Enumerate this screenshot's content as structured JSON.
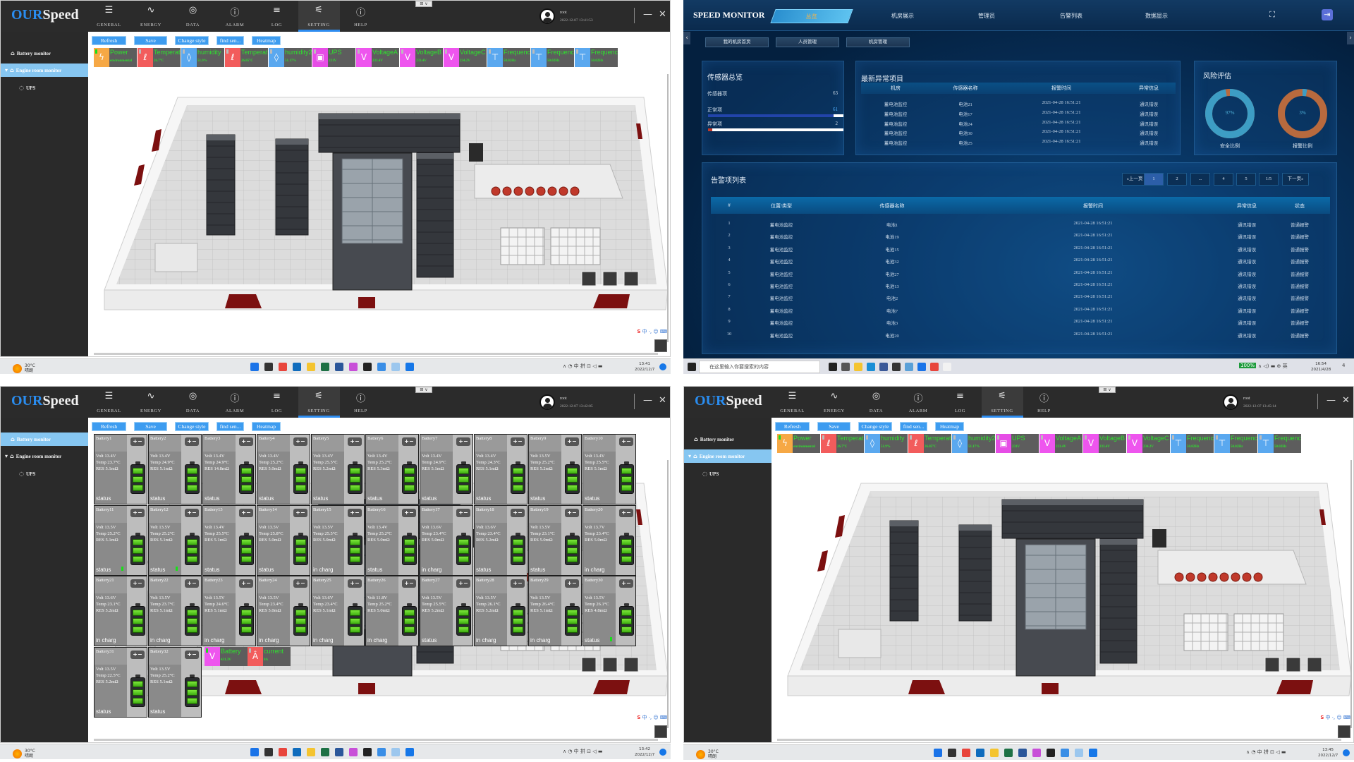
{
  "ourspeed": {
    "logo_our": "OUR",
    "logo_speed": "Speed",
    "nav": [
      {
        "label": "GENERAL",
        "icon": "list-icon"
      },
      {
        "label": "ENERGY",
        "icon": "pulse-icon"
      },
      {
        "label": "DATA",
        "icon": "gauge-icon"
      },
      {
        "label": "ALARM",
        "icon": "alarm-icon"
      },
      {
        "label": "LOG",
        "icon": "log-icon"
      },
      {
        "label": "SETTING",
        "icon": "sliders-icon",
        "active": true
      },
      {
        "label": "HELP",
        "icon": "info-icon"
      }
    ],
    "user_name": "root",
    "window_menu": "⊞ ∨",
    "sidebar": [
      {
        "label": "Battery monitor",
        "icon": "home-icon"
      },
      {
        "label": "Engine room monitor",
        "icon": "home-icon",
        "expanded": true
      },
      {
        "label": "UPS",
        "icon": "circle-icon"
      }
    ],
    "toolbar": [
      "Refresh",
      "Save",
      "Change style",
      "find sen...",
      "Heatmap"
    ],
    "sensor_colors": {
      "power": "#f6a845",
      "temperature": "#f25c5c",
      "humidity": "#5aa8ef",
      "ups": "#e64de6",
      "voltage": "#ee55ee",
      "frequency": "#5aa8ef",
      "current": "#f25c5c"
    },
    "sensors": [
      {
        "name": "Power",
        "value": "environmental",
        "type": "power",
        "online": true
      },
      {
        "name": "Temperature",
        "value": "26.7°C",
        "type": "temperature"
      },
      {
        "name": "humidity",
        "value": "51.9%",
        "type": "humidity"
      },
      {
        "name": "Temperature",
        "value": "26.85°C",
        "type": "temperature"
      },
      {
        "name": "humidity2",
        "value": "51.17%",
        "type": "humidity"
      },
      {
        "name": "UPS",
        "value": "231V",
        "type": "ups"
      },
      {
        "name": "VoltageA",
        "value": "233.4V",
        "type": "voltage"
      },
      {
        "name": "VoltageB",
        "value": "233.4V",
        "type": "voltage"
      },
      {
        "name": "VoltageC",
        "value": "234.2V",
        "type": "voltage"
      },
      {
        "name": "Frequency",
        "value": "50.02Hz",
        "type": "frequency"
      },
      {
        "name": "Frequency",
        "value": "50.02Hz",
        "type": "frequency"
      },
      {
        "name": "Frequency",
        "value": "50.02Hz",
        "type": "frequency"
      }
    ],
    "ime_label": "中 ·, ☺ ⌨"
  },
  "windows": {
    "tl": {
      "header_datetime": "2022-12-07 13:41:53",
      "selected_sidebar": 1,
      "taskbar_time": "13:41",
      "taskbar_date": "2022/12/7"
    },
    "bl": {
      "header_datetime": "2022-12-07 13:42:05",
      "selected_sidebar": 0,
      "taskbar_time": "13:42",
      "taskbar_date": "2022/12/7"
    },
    "br": {
      "header_datetime": "2022-12-07 13:45:14",
      "selected_sidebar": 1,
      "taskbar_time": "13:45",
      "taskbar_date": "2022/12/7"
    }
  },
  "battery_monitor": {
    "terminal_label": "+−",
    "batteries": [
      {
        "name": "Battery1",
        "volt": "Volt 13.4V",
        "temp": "Temp 23.7°C",
        "res": "RES 5.1mΩ",
        "status": "status"
      },
      {
        "name": "Battery2",
        "volt": "Volt 13.4V",
        "temp": "Temp 24.9°C",
        "res": "RES 5.1mΩ",
        "status": "status"
      },
      {
        "name": "Battery3",
        "volt": "Volt 13.4V",
        "temp": "Temp 24.9°C",
        "res": "RES 14.8mΩ",
        "status": "status"
      },
      {
        "name": "Battery4",
        "volt": "Volt 13.4V",
        "temp": "Temp 25.2°C",
        "res": "RES 5.0mΩ",
        "status": "status"
      },
      {
        "name": "Battery5",
        "volt": "Volt 13.4V",
        "temp": "Temp 25.5°C",
        "res": "RES 5.2mΩ",
        "status": "status"
      },
      {
        "name": "Battery6",
        "volt": "Volt 13.4V",
        "temp": "Temp 25.2°C",
        "res": "RES 5.3mΩ",
        "status": "status"
      },
      {
        "name": "Battery7",
        "volt": "Volt 13.4V",
        "temp": "Temp 24.9°C",
        "res": "RES 5.1mΩ",
        "status": "status"
      },
      {
        "name": "Battery8",
        "volt": "Volt 13.4V",
        "temp": "Temp 24.3°C",
        "res": "RES 5.1mΩ",
        "status": "status"
      },
      {
        "name": "Battery9",
        "volt": "Volt 13.5V",
        "temp": "Temp 25.2°C",
        "res": "RES 5.2mΩ",
        "status": "status"
      },
      {
        "name": "Battery10",
        "volt": "Volt 13.4V",
        "temp": "Temp 25.5°C",
        "res": "RES 5.1mΩ",
        "status": "status"
      },
      {
        "name": "Battery11",
        "volt": "Volt 13.5V",
        "temp": "Temp 25.2°C",
        "res": "RES 5.1mΩ",
        "status": "status",
        "indicator": true
      },
      {
        "name": "Battery12",
        "volt": "Volt 13.5V",
        "temp": "Temp 25.2°C",
        "res": "RES 5.1mΩ",
        "status": "status",
        "indicator": true
      },
      {
        "name": "Battery13",
        "volt": "Volt 13.4V",
        "temp": "Temp 25.5°C",
        "res": "RES 5.1mΩ",
        "status": "status"
      },
      {
        "name": "Battery14",
        "volt": "Volt 13.5V",
        "temp": "Temp 25.8°C",
        "res": "RES 5.0mΩ",
        "status": "status"
      },
      {
        "name": "Battery15",
        "volt": "Volt 13.5V",
        "temp": "Temp 25.5°C",
        "res": "RES 5.0mΩ",
        "status": "in charg"
      },
      {
        "name": "Battery16",
        "volt": "Volt 13.4V",
        "temp": "Temp 25.2°C",
        "res": "RES 5.0mΩ",
        "status": "status"
      },
      {
        "name": "Battery17",
        "volt": "Volt 13.6V",
        "temp": "Temp 23.4°C",
        "res": "RES 5.0mΩ",
        "status": "in charg"
      },
      {
        "name": "Battery18",
        "volt": "Volt 13.6V",
        "temp": "Temp 23.4°C",
        "res": "RES 5.2mΩ",
        "status": "status"
      },
      {
        "name": "Battery19",
        "volt": "Volt 13.5V",
        "temp": "Temp 23.1°C",
        "res": "RES 5.0mΩ",
        "status": "status"
      },
      {
        "name": "Battery20",
        "volt": "Volt 13.7V",
        "temp": "Temp 23.4°C",
        "res": "RES 5.0mΩ",
        "status": "in charg"
      },
      {
        "name": "Battery21",
        "volt": "Volt 13.6V",
        "temp": "Temp 23.1°C",
        "res": "RES 5.2mΩ",
        "status": "in charg"
      },
      {
        "name": "Battery22",
        "volt": "Volt 13.5V",
        "temp": "Temp 23.7°C",
        "res": "RES 5.1mΩ",
        "status": "in charg"
      },
      {
        "name": "Battery23",
        "volt": "Volt 13.5V",
        "temp": "Temp 24.6°C",
        "res": "RES 5.1mΩ",
        "status": "in charg"
      },
      {
        "name": "Battery24",
        "volt": "Volt 13.5V",
        "temp": "Temp 23.4°C",
        "res": "RES 5.0mΩ",
        "status": "in charg"
      },
      {
        "name": "Battery25",
        "volt": "Volt 13.6V",
        "temp": "Temp 23.4°C",
        "res": "RES 5.1mΩ",
        "status": "in charg"
      },
      {
        "name": "Battery26",
        "volt": "Volt 11.8V",
        "temp": "Temp 25.2°C",
        "res": "RES 5.0mΩ",
        "status": "in charg"
      },
      {
        "name": "Battery27",
        "volt": "Volt 13.5V",
        "temp": "Temp 25.5°C",
        "res": "RES 5.2mΩ",
        "status": "status"
      },
      {
        "name": "Battery28",
        "volt": "Volt 13.5V",
        "temp": "Temp 26.1°C",
        "res": "RES 5.2mΩ",
        "status": "in charg"
      },
      {
        "name": "Battery29",
        "volt": "Volt 13.5V",
        "temp": "Temp 26.4°C",
        "res": "RES 5.1mΩ",
        "status": "in charg"
      },
      {
        "name": "Battery30",
        "volt": "Volt 13.5V",
        "temp": "Temp 26.1°C",
        "res": "RES 4.8mΩ",
        "status": "status",
        "indicator": true
      },
      {
        "name": "Battery31",
        "volt": "Volt 13.5V",
        "temp": "Temp 22.5°C",
        "res": "RES 5.2mΩ",
        "status": "status"
      },
      {
        "name": "Battery32",
        "volt": "Volt 13.5V",
        "temp": "Temp 25.2°C",
        "res": "RES 5.1mΩ",
        "status": "status"
      }
    ],
    "overlay_sensors": [
      {
        "name": "Battery",
        "value": "431.3V",
        "type": "voltage",
        "online": true
      },
      {
        "name": "current",
        "value": "0A",
        "type": "current"
      }
    ]
  },
  "speed_monitor": {
    "title": "SPEED MONITOR",
    "tabs": [
      "总览",
      "机房展示",
      "管理员",
      "告警列表",
      "数据显示"
    ],
    "active_tab": 0,
    "subtabs": [
      "我的机房首页",
      "人员管理",
      "机房管理"
    ],
    "sensor_overview": {
      "title": "传感器总览",
      "total_label": "传感器项",
      "total": "63",
      "normal_label": "正常项",
      "normal": "61",
      "abnormal_label": "异常项",
      "abnormal": "2"
    },
    "latest": {
      "title": "最新异常项目",
      "columns": [
        "机房",
        "传感器名称",
        "报警时间",
        "异常信息"
      ],
      "rows": [
        [
          "蓄电池监控",
          "电池21",
          "2021-04-28 16:51:21",
          "通讯错误"
        ],
        [
          "蓄电池监控",
          "电池17",
          "2021-04-28 16:51:21",
          "通讯错误"
        ],
        [
          "蓄电池监控",
          "电池24",
          "2021-04-28 16:51:21",
          "通讯错误"
        ],
        [
          "蓄电池监控",
          "电池30",
          "2021-04-28 16:51:21",
          "通讯错误"
        ],
        [
          "蓄电池监控",
          "电池25",
          "2021-04-28 16:51:21",
          "通讯错误"
        ]
      ]
    },
    "risk": {
      "title": "风险评估",
      "safe": {
        "value": "97%",
        "percent": 97,
        "label": "安全比例",
        "color": "#3d9dc4",
        "rest_color": "#b86a3e"
      },
      "alarm": {
        "value": "3%",
        "percent": 3,
        "label": "报警比例",
        "color": "#3d9dc4",
        "rest_color": "#b86a3e"
      }
    },
    "alarm_list": {
      "title": "告警项列表",
      "pagination": [
        "«上一页",
        "1",
        "2",
        "...",
        "4",
        "5",
        "1/5",
        "下一页»"
      ],
      "current_page": "1",
      "columns": [
        "#",
        "位置/类型",
        "传感器名称",
        "报警时间",
        "异常信息",
        "状态"
      ],
      "rows": [
        [
          "1",
          "蓄电池监控",
          "电池1",
          "2021-04-28 16:51:21",
          "通讯错误",
          "普通报警"
        ],
        [
          "2",
          "蓄电池监控",
          "电池19",
          "2021-04-28 16:51:21",
          "通讯错误",
          "普通报警"
        ],
        [
          "3",
          "蓄电池监控",
          "电池15",
          "2021-04-28 16:51:21",
          "通讯错误",
          "普通报警"
        ],
        [
          "4",
          "蓄电池监控",
          "电池32",
          "2021-04-28 16:51:21",
          "通讯错误",
          "普通报警"
        ],
        [
          "5",
          "蓄电池监控",
          "电池27",
          "2021-04-28 16:51:21",
          "通讯错误",
          "普通报警"
        ],
        [
          "6",
          "蓄电池监控",
          "电池13",
          "2021-04-28 16:51:21",
          "通讯错误",
          "普通报警"
        ],
        [
          "7",
          "蓄电池监控",
          "电池2",
          "2021-04-28 16:51:21",
          "通讯错误",
          "普通报警"
        ],
        [
          "8",
          "蓄电池监控",
          "电池7",
          "2021-04-28 16:51:21",
          "通讯错误",
          "普通报警"
        ],
        [
          "9",
          "蓄电池监控",
          "电池3",
          "2021-04-28 16:51:21",
          "通讯错误",
          "普通报警"
        ],
        [
          "10",
          "蓄电池监控",
          "电池20",
          "2021-04-28 16:51:21",
          "通讯错误",
          "普通报警"
        ]
      ]
    },
    "taskbar": {
      "search_placeholder": "在这里输入你要搜索的内容",
      "battery": "100%",
      "tray": "∧ ◁) ▬ ⊕ 英",
      "time": "16:54",
      "date": "2021/4/28",
      "notifications": "4"
    }
  },
  "taskbar_win11": {
    "weather_temp": "30°C",
    "weather_desc": "晴朗",
    "tray": "∧ ◔ 中 拼 ⊡ ◁ ▬",
    "apps": [
      {
        "icon": "windows-start-icon",
        "color": "#1a73e8"
      },
      {
        "icon": "search-icon",
        "color": "#333333"
      },
      {
        "icon": "chrome-icon",
        "color": "#e8453c"
      },
      {
        "icon": "outlook-icon",
        "color": "#0f6cbd"
      },
      {
        "icon": "file-explorer-icon",
        "color": "#f4c430"
      },
      {
        "icon": "excel-icon",
        "color": "#1e7145"
      },
      {
        "icon": "word-icon",
        "color": "#2b579a"
      },
      {
        "icon": "color-picker-icon",
        "color": "#c84fd8"
      },
      {
        "icon": "terminal-icon",
        "color": "#222222"
      },
      {
        "icon": "remote-desktop-icon",
        "color": "#3a8ee6"
      },
      {
        "icon": "app-icon",
        "color": "#9cc7ee"
      },
      {
        "icon": "active-app-icon",
        "color": "#1677e8"
      }
    ]
  }
}
